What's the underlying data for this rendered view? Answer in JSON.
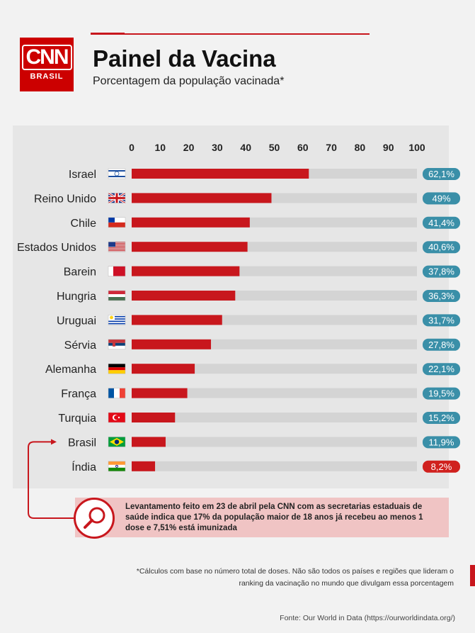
{
  "header": {
    "logo_text": "CNN",
    "logo_sub": "BRASIL",
    "title": "Painel da Vacina",
    "subtitle": "Porcentagem da população vacinada*"
  },
  "colors": {
    "accent": "#c8171d",
    "bar_track": "#d4d4d4",
    "label_blue": "#3a8fa8",
    "label_red": "#d0211e"
  },
  "chart_data": {
    "type": "bar",
    "orientation": "horizontal",
    "xlim": [
      0,
      100
    ],
    "ticks": [
      "0",
      "10",
      "20",
      "30",
      "40",
      "50",
      "60",
      "70",
      "80",
      "90",
      "100"
    ],
    "categories": [
      "Israel",
      "Reino Unido",
      "Chile",
      "Estados Unidos",
      "Barein",
      "Hungria",
      "Uruguai",
      "Sérvia",
      "Alemanha",
      "França",
      "Turquia",
      "Brasil",
      "Índia"
    ],
    "values": [
      62.1,
      49,
      41.4,
      40.6,
      37.8,
      36.3,
      31.7,
      27.8,
      22.1,
      19.5,
      15.2,
      11.9,
      8.2
    ],
    "value_labels": [
      "62,1%",
      "49%",
      "41,4%",
      "40,6%",
      "37,8%",
      "36,3%",
      "31,7%",
      "27,8%",
      "22,1%",
      "19,5%",
      "15,2%",
      "11,9%",
      "8,2%"
    ],
    "flags": [
      "israel-flag-icon",
      "uk-flag-icon",
      "chile-flag-icon",
      "usa-flag-icon",
      "bahrain-flag-icon",
      "hungary-flag-icon",
      "uruguay-flag-icon",
      "serbia-flag-icon",
      "germany-flag-icon",
      "france-flag-icon",
      "turkey-flag-icon",
      "brazil-flag-icon",
      "india-flag-icon"
    ],
    "highlight": "Índia"
  },
  "note": "Levantamento feito em 23 de abril pela CNN com as secretarias estaduais de saúde indica que 17% da população maior de 18 anos já recebeu ao menos 1 dose e 7,51% está imunizada",
  "footnote": "*Cálculos com base no número total de doses. Não são todos os países e regiões que lideram o ranking da vacinação no mundo que divulgam essa porcentagem",
  "source": "Fonte: Our World in Data (https://ourworldindata.org/)"
}
